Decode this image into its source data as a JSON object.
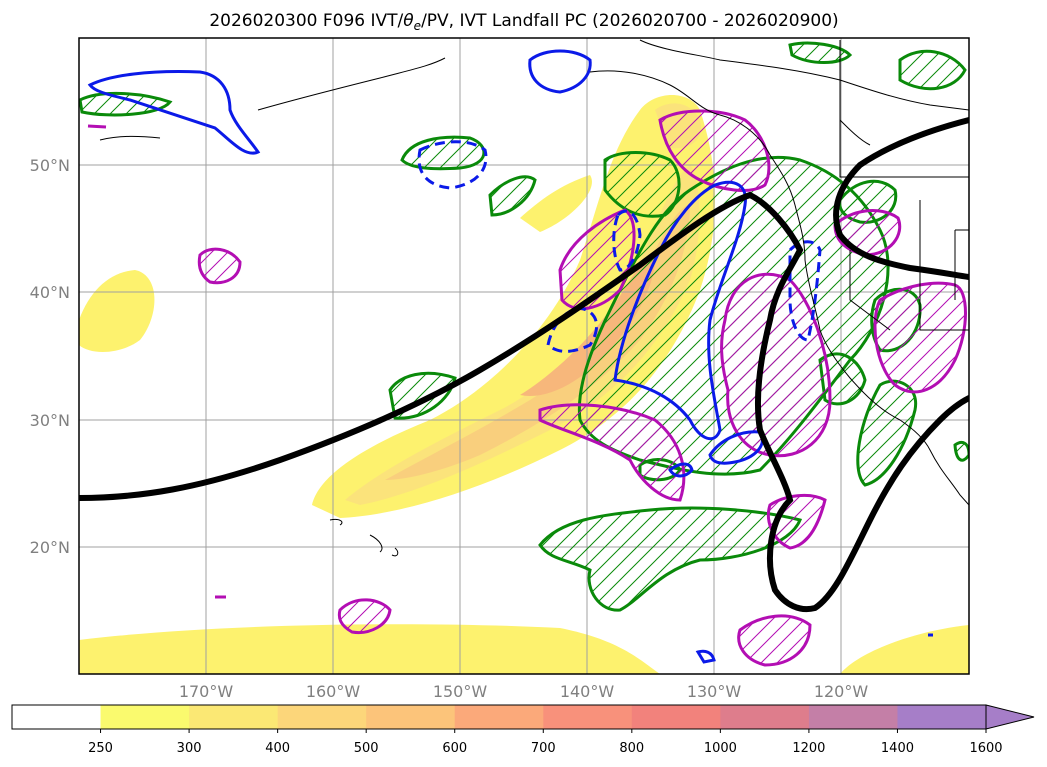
{
  "figure": {
    "title_main": "2026020300 F096 IVT/",
    "title_theta": "θ",
    "title_sub": "e",
    "title_rest": "/PV, IVT Landfall PC (2026020700 - 2026020900)"
  },
  "map": {
    "projection": "PlateCarree",
    "lon_range": [
      -182,
      -112
    ],
    "lat_range": [
      10,
      60
    ],
    "gridlines": true,
    "lat_labels": [
      "50°N",
      "40°N",
      "30°N",
      "20°N"
    ],
    "lon_labels": [
      "170°W",
      "160°W",
      "150°W",
      "140°W",
      "130°W",
      "120°W"
    ],
    "lat_ticks": [
      50,
      40,
      30,
      20
    ],
    "lon_ticks": [
      -170,
      -160,
      -150,
      -140,
      -130,
      -120
    ]
  },
  "colorbar": {
    "levels": [
      "250",
      "300",
      "400",
      "500",
      "600",
      "700",
      "800",
      "1000",
      "1200",
      "1400",
      "1600"
    ],
    "colors": [
      "#ffffff",
      "#fafa6e",
      "#fbe874",
      "#fcd67a",
      "#fcc47a",
      "#fba97a",
      "#f8917b",
      "#f2827c",
      "#de7d8c",
      "#c47fa7",
      "#a67ec8"
    ],
    "extend": "max"
  },
  "legend_colors": {
    "ivt_fill": "#fdf26e",
    "ivt_core": "#f8c86c",
    "pv_green": "#0a8a0a",
    "pv_blue": "#0b1ae8",
    "pv_magenta": "#b30eb3",
    "landfall_pc": "#000000"
  }
}
